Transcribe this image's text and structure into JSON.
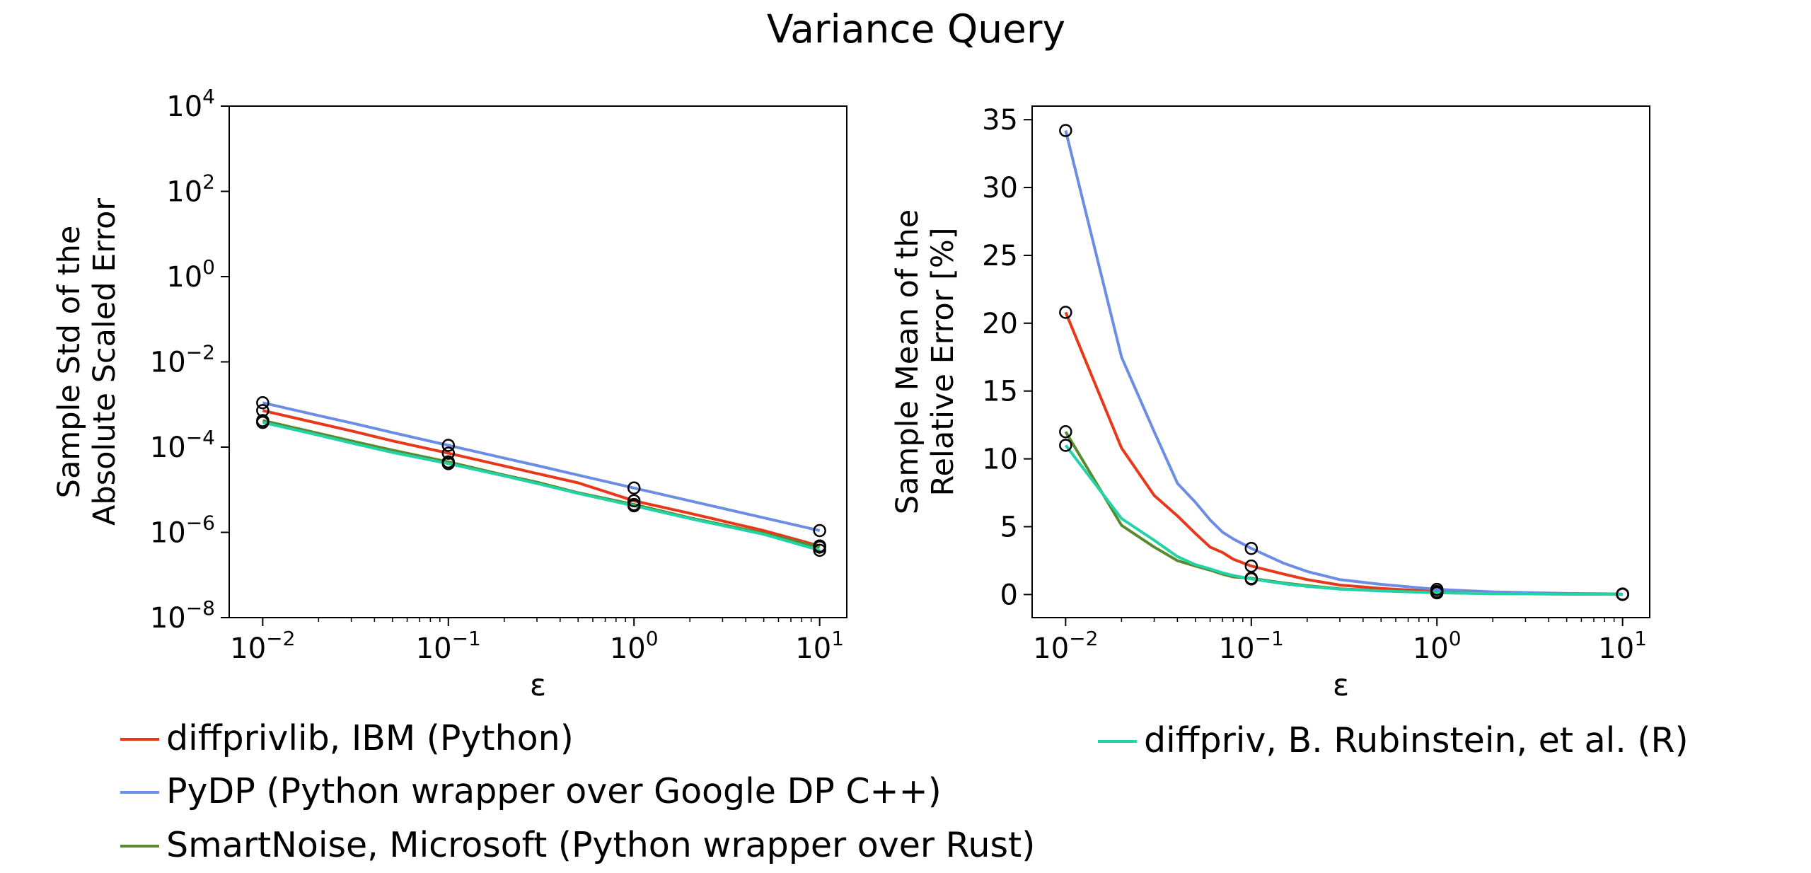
{
  "chart_data": {
    "title": "Variance Query",
    "panels": [
      {
        "type": "line",
        "xscale": "log",
        "yscale": "log",
        "xlabel": "ε",
        "ylabel_line1": "Sample Std of the",
        "ylabel_line2": "Absolute Scaled Error",
        "xlim": [
          0.0066,
          14
        ],
        "ylim": [
          1e-08,
          10000.0
        ],
        "xticks": [
          {
            "base": "10",
            "exp": "−2",
            "v": 0.01
          },
          {
            "base": "10",
            "exp": "−1",
            "v": 0.1
          },
          {
            "base": "10",
            "exp": "0",
            "v": 1
          },
          {
            "base": "10",
            "exp": "1",
            "v": 10
          }
        ],
        "yticks": [
          {
            "base": "10",
            "exp": "−8",
            "v": 1e-08
          },
          {
            "base": "10",
            "exp": "−6",
            "v": 1e-06
          },
          {
            "base": "10",
            "exp": "−4",
            "v": 0.0001
          },
          {
            "base": "10",
            "exp": "−2",
            "v": 0.01
          },
          {
            "base": "10",
            "exp": "0",
            "v": 1
          },
          {
            "base": "10",
            "exp": "2",
            "v": 100
          },
          {
            "base": "10",
            "exp": "4",
            "v": 10000
          }
        ],
        "markers_x": [
          0.01,
          0.1,
          1,
          10
        ],
        "series": [
          {
            "name": "diffprivlib, IBM (Python)",
            "color": "#e8381a",
            "x": [
              0.01,
              0.02,
              0.03,
              0.05,
              0.1,
              0.2,
              0.3,
              0.5,
              1,
              2,
              5,
              10
            ],
            "y": [
              0.00072,
              0.00036,
              0.00024,
              0.00014,
              7.2e-05,
              3.6e-05,
              2.4e-05,
              1.45e-05,
              5.5e-06,
              2.8e-06,
              1.1e-06,
              4.8e-07
            ]
          },
          {
            "name": "PyDP (Python wrapper over Google DP C++)",
            "color": "#6b8de3",
            "x": [
              0.01,
              0.02,
              0.03,
              0.05,
              0.1,
              0.2,
              0.3,
              0.5,
              1,
              2,
              5,
              10
            ],
            "y": [
              0.0011,
              0.00055,
              0.00037,
              0.00022,
              0.00011,
              5.5e-05,
              3.7e-05,
              2.2e-05,
              1.1e-05,
              5.5e-06,
              2.2e-06,
              1.1e-06
            ]
          },
          {
            "name": "SmartNoise, Microsoft (Python wrapper over Rust)",
            "color": "#5a8a2e",
            "x": [
              0.01,
              0.02,
              0.03,
              0.05,
              0.1,
              0.2,
              0.3,
              0.5,
              1,
              2,
              5,
              10
            ],
            "y": [
              0.00042,
              0.00021,
              0.00014,
              8.5e-05,
              4.5e-05,
              2.2e-05,
              1.5e-05,
              8.5e-06,
              4.5e-06,
              2.2e-06,
              9.5e-07,
              4.5e-07
            ]
          },
          {
            "name": "diffpriv, B. Rubinstein, et al. (R)",
            "color": "#22d3a8",
            "x": [
              0.01,
              0.02,
              0.03,
              0.05,
              0.1,
              0.2,
              0.3,
              0.5,
              1,
              2,
              5,
              10
            ],
            "y": [
              0.00038,
              0.00019,
              0.000125,
              7.5e-05,
              4.1e-05,
              2.1e-05,
              1.4e-05,
              8.2e-06,
              4.2e-06,
              2.1e-06,
              9e-07,
              3.8e-07
            ]
          }
        ]
      },
      {
        "type": "line",
        "xscale": "log",
        "yscale": "linear",
        "xlabel": "ε",
        "ylabel_line1": "Sample Mean of the",
        "ylabel_line2": "Relative Error [%]",
        "xlim": [
          0.0066,
          14
        ],
        "ylim": [
          -1.7,
          36
        ],
        "xticks": [
          {
            "base": "10",
            "exp": "−2",
            "v": 0.01
          },
          {
            "base": "10",
            "exp": "−1",
            "v": 0.1
          },
          {
            "base": "10",
            "exp": "0",
            "v": 1
          },
          {
            "base": "10",
            "exp": "1",
            "v": 10
          }
        ],
        "yticks": [
          {
            "label": "0",
            "v": 0
          },
          {
            "label": "5",
            "v": 5
          },
          {
            "label": "10",
            "v": 10
          },
          {
            "label": "15",
            "v": 15
          },
          {
            "label": "20",
            "v": 20
          },
          {
            "label": "25",
            "v": 25
          },
          {
            "label": "30",
            "v": 30
          },
          {
            "label": "35",
            "v": 35
          }
        ],
        "markers_x": [
          0.01,
          0.1,
          1,
          10
        ],
        "series": [
          {
            "name": "diffprivlib, IBM (Python)",
            "color": "#e8381a",
            "x": [
              0.01,
              0.02,
              0.03,
              0.04,
              0.05,
              0.06,
              0.07,
              0.08,
              0.1,
              0.15,
              0.2,
              0.3,
              0.5,
              1,
              2,
              5,
              10
            ],
            "y": [
              20.8,
              10.8,
              7.3,
              5.8,
              4.5,
              3.5,
              3.1,
              2.6,
              2.1,
              1.5,
              1.1,
              0.7,
              0.45,
              0.22,
              0.12,
              0.05,
              0.02
            ]
          },
          {
            "name": "PyDP (Python wrapper over Google DP C++)",
            "color": "#6b8de3",
            "x": [
              0.01,
              0.02,
              0.03,
              0.04,
              0.05,
              0.06,
              0.07,
              0.08,
              0.1,
              0.15,
              0.2,
              0.3,
              0.5,
              1,
              2,
              5,
              10
            ],
            "y": [
              34.2,
              17.5,
              12.0,
              8.2,
              6.8,
              5.5,
              4.6,
              4.1,
              3.4,
              2.3,
              1.7,
              1.1,
              0.75,
              0.38,
              0.2,
              0.08,
              0.04
            ]
          },
          {
            "name": "SmartNoise, Microsoft (Python wrapper over Rust)",
            "color": "#5a8a2e",
            "x": [
              0.01,
              0.02,
              0.03,
              0.04,
              0.05,
              0.06,
              0.07,
              0.08,
              0.1,
              0.15,
              0.2,
              0.3,
              0.5,
              1,
              2,
              5,
              10
            ],
            "y": [
              12.0,
              5.1,
              3.5,
              2.5,
              2.1,
              1.8,
              1.5,
              1.3,
              1.2,
              0.85,
              0.65,
              0.42,
              0.28,
              0.14,
              0.07,
              0.03,
              0.015
            ]
          },
          {
            "name": "diffpriv, B. Rubinstein, et al. (R)",
            "color": "#22d3a8",
            "x": [
              0.01,
              0.02,
              0.03,
              0.04,
              0.05,
              0.06,
              0.07,
              0.08,
              0.1,
              0.15,
              0.2,
              0.3,
              0.5,
              1,
              2,
              5,
              10
            ],
            "y": [
              11.0,
              5.6,
              4.0,
              2.8,
              2.2,
              1.9,
              1.6,
              1.4,
              1.15,
              0.8,
              0.6,
              0.4,
              0.26,
              0.13,
              0.06,
              0.025,
              0.01
            ]
          }
        ]
      }
    ],
    "legend": [
      {
        "label": "diffprivlib, IBM (Python)",
        "color": "#e8381a"
      },
      {
        "label": "PyDP (Python wrapper over Google DP C++)",
        "color": "#6b8de3"
      },
      {
        "label": "SmartNoise, Microsoft (Python wrapper over Rust)",
        "color": "#5a8a2e"
      },
      {
        "label": "diffpriv, B. Rubinstein, et al. (R)",
        "color": "#22d3a8"
      }
    ]
  }
}
